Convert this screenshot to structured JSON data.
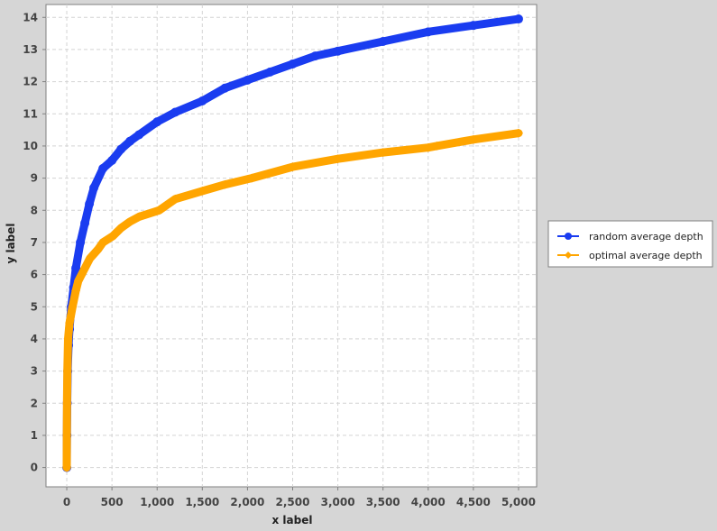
{
  "chart_data": {
    "type": "line",
    "title": "",
    "xlabel": "x label",
    "ylabel": "y label",
    "xlim": [
      -230,
      5200
    ],
    "ylim": [
      -0.6,
      14.4
    ],
    "x_ticks": [
      0,
      500,
      1000,
      1500,
      2000,
      2500,
      3000,
      3500,
      4000,
      4500,
      5000
    ],
    "x_tick_labels": [
      "0",
      "500",
      "1,000",
      "1,500",
      "2,000",
      "2,500",
      "3,000",
      "3,500",
      "4,000",
      "4,500",
      "5,000"
    ],
    "y_ticks": [
      0,
      1,
      2,
      3,
      4,
      5,
      6,
      7,
      8,
      9,
      10,
      11,
      12,
      13,
      14
    ],
    "y_tick_labels": [
      "0",
      "1",
      "2",
      "3",
      "4",
      "5",
      "6",
      "7",
      "8",
      "9",
      "10",
      "11",
      "12",
      "13",
      "14"
    ],
    "grid": true,
    "legend_position": "right",
    "series": [
      {
        "name": "random average depth",
        "color": "#1a3cf0",
        "marker": "circle",
        "x": [
          0,
          2,
          5,
          10,
          20,
          30,
          50,
          75,
          100,
          150,
          200,
          250,
          300,
          400,
          500,
          600,
          700,
          800,
          1000,
          1200,
          1500,
          1750,
          2000,
          2250,
          2500,
          2750,
          3000,
          3500,
          4000,
          4500,
          5000
        ],
        "y": [
          0,
          1,
          2,
          3,
          3.8,
          4.3,
          5.0,
          5.6,
          6.2,
          7.0,
          7.6,
          8.2,
          8.7,
          9.3,
          9.55,
          9.9,
          10.15,
          10.35,
          10.75,
          11.05,
          11.4,
          11.8,
          12.05,
          12.3,
          12.55,
          12.8,
          12.95,
          13.25,
          13.55,
          13.75,
          13.95
        ]
      },
      {
        "name": "optimal average depth",
        "color": "#ffa500",
        "marker": "diamond",
        "x": [
          0,
          1,
          3,
          7,
          15,
          31,
          63,
          100,
          127,
          200,
          255,
          350,
          400,
          511,
          600,
          700,
          800,
          1023,
          1200,
          1500,
          1750,
          2047,
          2500,
          3000,
          3500,
          4000,
          4095,
          4500,
          5000
        ],
        "y": [
          0,
          1,
          2,
          3,
          4,
          4.5,
          5,
          5.5,
          5.8,
          6.2,
          6.5,
          6.8,
          7,
          7.2,
          7.45,
          7.65,
          7.8,
          8.0,
          8.35,
          8.6,
          8.8,
          9.0,
          9.35,
          9.6,
          9.8,
          9.95,
          10.0,
          10.2,
          10.4
        ]
      }
    ]
  }
}
